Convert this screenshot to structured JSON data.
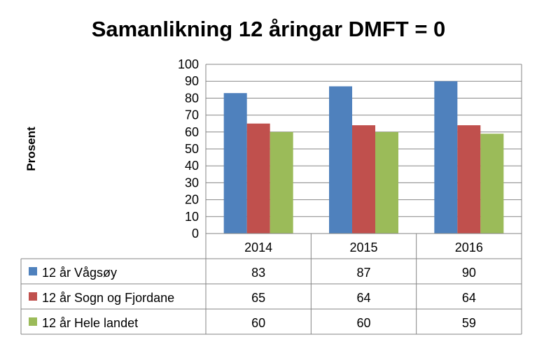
{
  "chart_data": {
    "type": "bar",
    "title": "Samanlikning 12 åringar DMFT = 0",
    "ylabel": "Prosent",
    "xlabel": "",
    "categories": [
      "2014",
      "2015",
      "2016"
    ],
    "ylim": [
      0,
      100
    ],
    "yticks": [
      "0",
      "10",
      "20",
      "30",
      "40",
      "50",
      "60",
      "70",
      "80",
      "90",
      "100"
    ],
    "grid": true,
    "legend": "data table below chart",
    "series": [
      {
        "name": "12 år Vågsøy",
        "color": "#4F81BD",
        "values": [
          83,
          87,
          90
        ]
      },
      {
        "name": "12 år Sogn og Fjordane",
        "color": "#C0504D",
        "values": [
          65,
          64,
          64
        ]
      },
      {
        "name": "12 år Hele landet",
        "color": "#9BBB59",
        "values": [
          60,
          60,
          59
        ]
      }
    ]
  }
}
